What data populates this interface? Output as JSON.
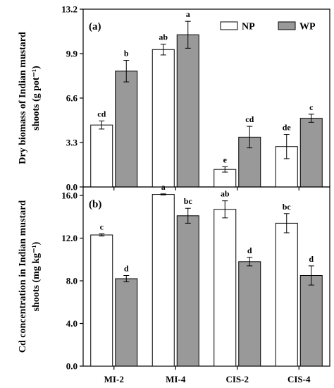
{
  "colors": {
    "NP": "#ffffff",
    "WP": "#999999",
    "axis": "#000000"
  },
  "legend": {
    "items": [
      "NP",
      "WP"
    ],
    "placement": "top-right of panel (a)"
  },
  "chart_data": [
    {
      "type": "bar",
      "panel_label": "(a)",
      "ylabel": [
        "Dry biomass of Indian mustard",
        "shoots (g pot⁻¹)"
      ],
      "ylim": [
        0,
        13.2
      ],
      "yticks": [
        0.0,
        3.3,
        6.6,
        9.9,
        13.2
      ],
      "ytick_labels": [
        "0.0",
        "3.3",
        "6.6",
        "9.9",
        "13.2"
      ],
      "categories": [
        "MI-2",
        "MI-4",
        "CIS-2",
        "CIS-4"
      ],
      "series": [
        {
          "name": "NP",
          "values": [
            4.6,
            10.2,
            1.3,
            3.0
          ],
          "errors": [
            0.3,
            0.4,
            0.2,
            0.9
          ],
          "letters": [
            "cd",
            "ab",
            "e",
            "de"
          ]
        },
        {
          "name": "WP",
          "values": [
            8.6,
            11.3,
            3.7,
            5.1
          ],
          "errors": [
            0.8,
            1.0,
            0.8,
            0.3
          ],
          "letters": [
            "b",
            "a",
            "cd",
            "c"
          ]
        }
      ]
    },
    {
      "type": "bar",
      "panel_label": "(b)",
      "ylabel": [
        "Cd concentration in Indian mustard",
        "shoots (mg kg⁻¹)"
      ],
      "ylim": [
        0,
        16.8
      ],
      "yticks": [
        0.0,
        4.0,
        8.0,
        12.0,
        16.0
      ],
      "ytick_labels": [
        "0.0",
        "4.0",
        "8.0",
        "12.0",
        "16.0"
      ],
      "categories": [
        "MI-2",
        "MI-4",
        "CIS-2",
        "CIS-4"
      ],
      "xtick_labels": [
        "MI-2",
        "MI-4",
        "CIS-2",
        "CIS-4"
      ],
      "series": [
        {
          "name": "NP",
          "values": [
            12.3,
            16.1,
            14.7,
            13.4
          ],
          "errors": [
            0.1,
            0.05,
            0.8,
            0.9
          ],
          "letters": [
            "c",
            "a",
            "ab",
            "bc"
          ]
        },
        {
          "name": "WP",
          "values": [
            8.2,
            14.1,
            9.8,
            8.5
          ],
          "errors": [
            0.3,
            0.7,
            0.4,
            0.9
          ],
          "letters": [
            "d",
            "bc",
            "d",
            "d"
          ]
        }
      ]
    }
  ]
}
